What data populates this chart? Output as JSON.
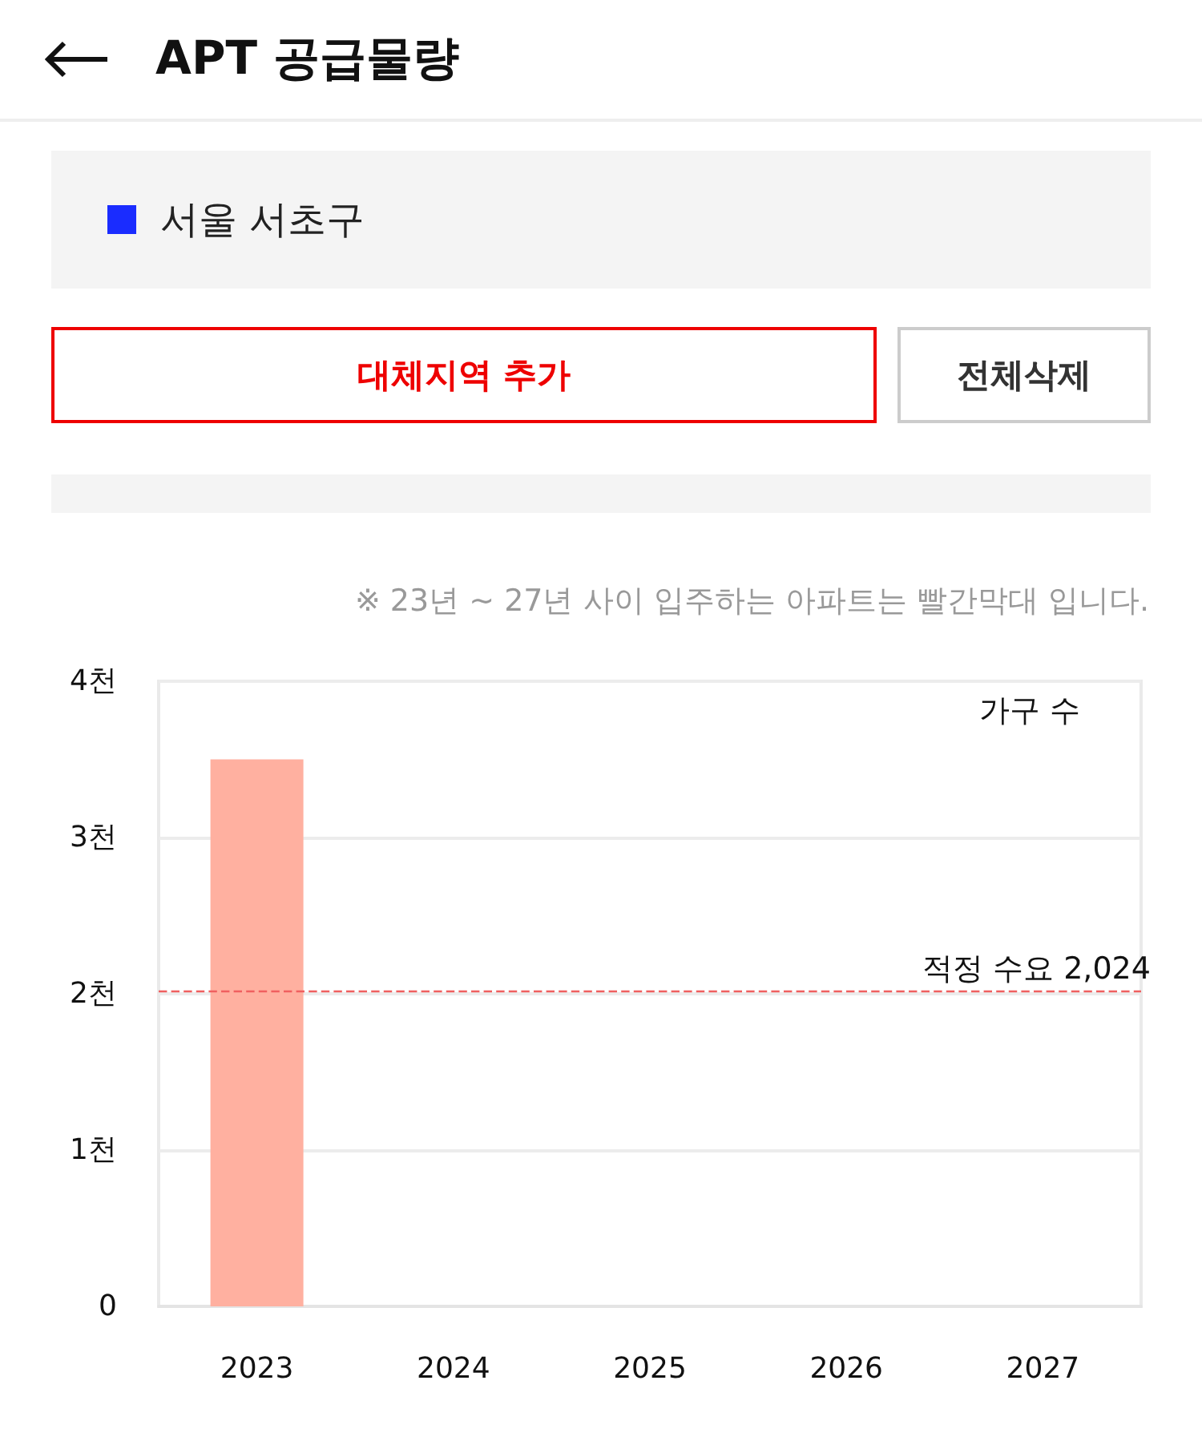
{
  "chart_data": {
    "type": "bar",
    "title": "APT 공급물량",
    "subtitle": "서울 서초구",
    "ylabel": "가구 수",
    "annotations": [
      "대체지역 추가",
      "전체삭제",
      "※ 23년 ~ 27년 사이 입주하는 아파트는 빨간막대 입니다."
    ],
    "categories": [
      "2023",
      "2024",
      "2025",
      "2026",
      "2027"
    ],
    "series": [
      {
        "color": "#ffb0a0",
        "values": [
          3.5,
          null,
          null,
          null,
          null
        ]
      }
    ],
    "ylim": [
      0,
      4
    ],
    "yticks": [
      0,
      {
        "value": 1,
        "label": "1천"
      },
      {
        "value": 2,
        "label": "2천"
      },
      {
        "value": 3,
        "label": "3천"
      },
      {
        "value": 4,
        "label": "4천"
      }
    ],
    "ref_lines": [
      {
        "axis": "y",
        "value": 2.024,
        "label": "적정 수요 2,024",
        "color": "#f06060",
        "line_style": "dashed"
      }
    ],
    "grid": "y"
  }
}
